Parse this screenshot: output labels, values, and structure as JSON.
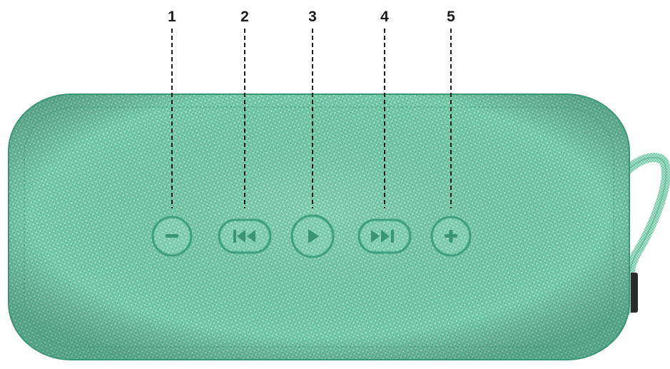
{
  "colors": {
    "fabric": "#6fc7a6",
    "fabric_light": "#b4e6d0",
    "fabric_dark": "#3e9d7c",
    "strap": "#86ceb2",
    "leader_line": "#1c1c1c",
    "label": "#1c1c1c"
  },
  "callouts": [
    {
      "number": "1",
      "icon": "minus-icon"
    },
    {
      "number": "2",
      "icon": "previous-track-icon"
    },
    {
      "number": "3",
      "icon": "play-pause-icon"
    },
    {
      "number": "4",
      "icon": "next-track-icon"
    },
    {
      "number": "5",
      "icon": "plus-icon"
    }
  ]
}
